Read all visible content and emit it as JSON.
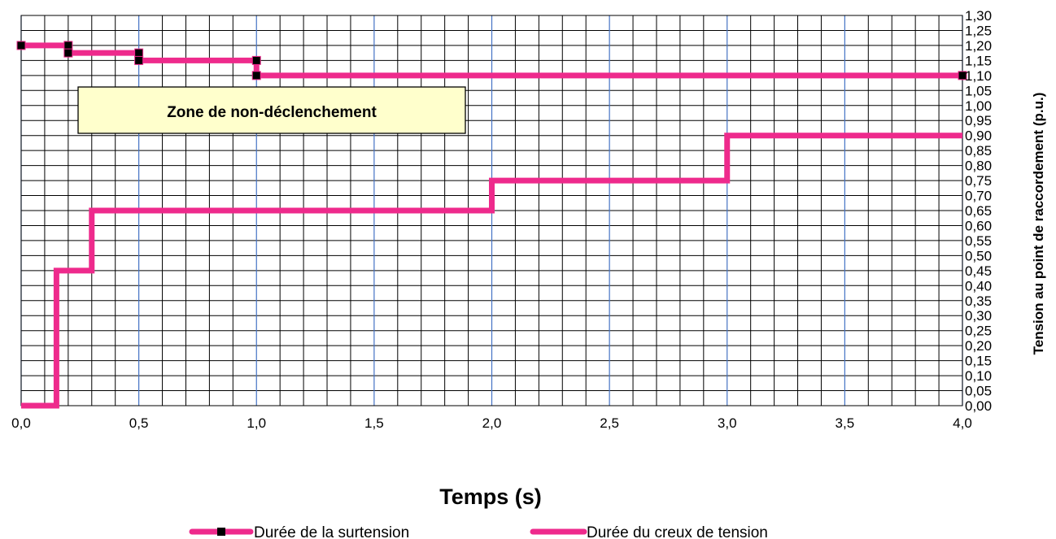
{
  "chart_data": {
    "type": "line",
    "xlabel": "Temps (s)",
    "ylabel": "Tension au point de raccordement  (p.u.)",
    "xlim": [
      0,
      4
    ],
    "ylim": [
      0,
      1.3
    ],
    "x_ticks": [
      "0,0",
      "0,5",
      "1,0",
      "1,5",
      "2,0",
      "2,5",
      "3,0",
      "3,5",
      "4,0"
    ],
    "y_ticks": [
      "0,00",
      "0,05",
      "0,10",
      "0,15",
      "0,20",
      "0,25",
      "0,30",
      "0,35",
      "0,40",
      "0,45",
      "0,50",
      "0,55",
      "0,60",
      "0,65",
      "0,70",
      "0,75",
      "0,80",
      "0,85",
      "0,90",
      "0,95",
      "1,00",
      "1,05",
      "1,10",
      "1,15",
      "1,20",
      "1,25",
      "1,30"
    ],
    "y_axis_side": "right",
    "grid": true,
    "legend_position": "bottom",
    "series": [
      {
        "name": "Durée de la surtension",
        "color": "#ee2a8c",
        "marker": "square",
        "x": [
          0.0,
          0.2,
          0.2,
          0.5,
          0.5,
          1.0,
          1.0,
          4.0
        ],
        "y": [
          1.2,
          1.2,
          1.175,
          1.175,
          1.15,
          1.15,
          1.1,
          1.1
        ]
      },
      {
        "name": "Durée du creux de tension",
        "color": "#ee2a8c",
        "marker": "none",
        "x": [
          0.0,
          0.15,
          0.15,
          0.3,
          0.3,
          2.0,
          2.0,
          3.0,
          3.0,
          4.0
        ],
        "y": [
          0.0,
          0.0,
          0.45,
          0.45,
          0.65,
          0.65,
          0.75,
          0.75,
          0.9,
          0.9
        ]
      }
    ],
    "annotations": [
      {
        "text": "Zone de non-déclenchement"
      }
    ]
  }
}
